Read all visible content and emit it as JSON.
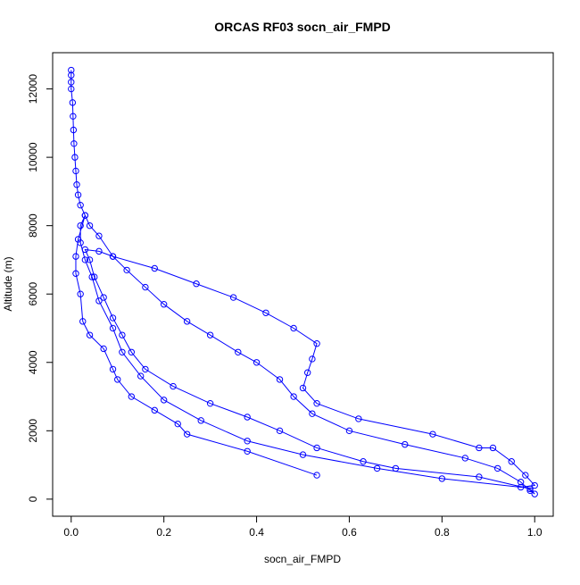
{
  "chart_data": {
    "type": "scatter_line",
    "title": "ORCAS RF03 socn_air_FMPD",
    "x_label": "socn_air_FMPD",
    "y_label": "Altitude (m)",
    "color": "#0000ff",
    "x": [
      0.0,
      0.0,
      0.0,
      0.0,
      0.003,
      0.004,
      0.005,
      0.006,
      0.008,
      0.01,
      0.012,
      0.015,
      0.02,
      0.03,
      0.04,
      0.06,
      0.09,
      0.12,
      0.16,
      0.2,
      0.25,
      0.3,
      0.36,
      0.4,
      0.45,
      0.48,
      0.52,
      0.6,
      0.72,
      0.85,
      0.92,
      0.97,
      0.99,
      1.0,
      0.99,
      0.88,
      0.7,
      0.63,
      0.53,
      0.45,
      0.38,
      0.3,
      0.22,
      0.16,
      0.13,
      0.11,
      0.09,
      0.07,
      0.05,
      0.04,
      0.03,
      0.06,
      0.09,
      0.18,
      0.27,
      0.35,
      0.42,
      0.48,
      0.53,
      0.52,
      0.51,
      0.5,
      0.53,
      0.62,
      0.78,
      0.88,
      0.91,
      0.95,
      0.98,
      1.0,
      0.97,
      0.8,
      0.66,
      0.5,
      0.38,
      0.28,
      0.2,
      0.15,
      0.11,
      0.09,
      0.06,
      0.045,
      0.03,
      0.02,
      0.02,
      0.03,
      0.015,
      0.01,
      0.01,
      0.02,
      0.025,
      0.04,
      0.07,
      0.09,
      0.1,
      0.13,
      0.18,
      0.23,
      0.25,
      0.38,
      0.53
    ],
    "y": [
      12550,
      12400,
      12200,
      12000,
      11600,
      11200,
      10800,
      10400,
      10000,
      9600,
      9200,
      8900,
      8600,
      8300,
      8000,
      7700,
      7100,
      6700,
      6200,
      5700,
      5200,
      4800,
      4300,
      4000,
      3500,
      3000,
      2500,
      2000,
      1600,
      1200,
      900,
      500,
      250,
      150,
      300,
      650,
      900,
      1100,
      1500,
      2000,
      2400,
      2800,
      3300,
      3800,
      4300,
      4800,
      5300,
      5900,
      6500,
      7000,
      7300,
      7250,
      7100,
      6750,
      6300,
      5900,
      5450,
      5000,
      4550,
      4100,
      3700,
      3250,
      2800,
      2350,
      1900,
      1500,
      1500,
      1100,
      700,
      400,
      350,
      600,
      900,
      1300,
      1700,
      2300,
      2900,
      3600,
      4300,
      5000,
      5800,
      6500,
      7000,
      7500,
      8000,
      8300,
      7600,
      7100,
      6600,
      6000,
      5200,
      4800,
      4400,
      3800,
      3500,
      3000,
      2600,
      2200,
      1900,
      1400,
      700
    ],
    "xlim": [
      -0.04,
      1.04
    ],
    "ylim": [
      -500,
      13060
    ],
    "xticks": [
      {
        "value": 0,
        "label": "0.0"
      },
      {
        "value": 0.2,
        "label": "0.2"
      },
      {
        "value": 0.4,
        "label": "0.4"
      },
      {
        "value": 0.6,
        "label": "0.6"
      },
      {
        "value": 0.8,
        "label": "0.8"
      },
      {
        "value": 1,
        "label": "1.0"
      }
    ],
    "yticks": [
      0,
      2000,
      4000,
      6000,
      8000,
      10000,
      12000
    ]
  }
}
